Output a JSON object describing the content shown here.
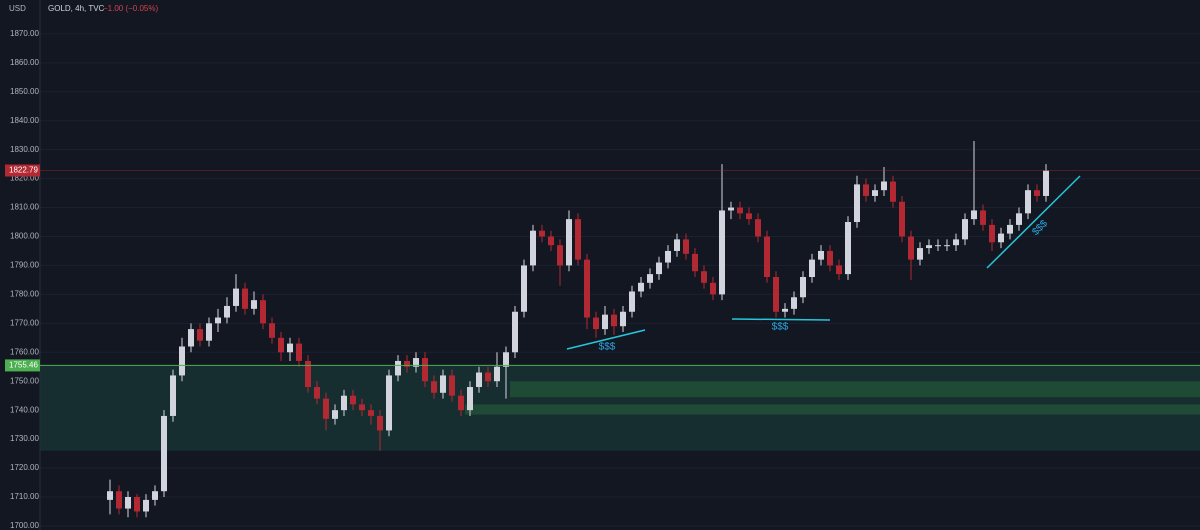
{
  "chart_data": {
    "type": "candlestick",
    "currency": "USD",
    "title": "GOLD, 4h, TVC",
    "change": "−1.00 (−0.05%)",
    "annotations": [
      "$$$",
      "$$$",
      "$$$"
    ],
    "ylim": [
      1698.6,
      1881.7
    ],
    "yticks": [
      {
        "value": 1700,
        "label": "1700.00"
      },
      {
        "value": 1710,
        "label": "1710.00"
      },
      {
        "value": 1720,
        "label": "1720.00"
      },
      {
        "value": 1730,
        "label": "1730.00"
      },
      {
        "value": 1740,
        "label": "1740.00"
      },
      {
        "value": 1750,
        "label": "1750.00"
      },
      {
        "value": 1760,
        "label": "1760.00"
      },
      {
        "value": 1770,
        "label": "1770.00"
      },
      {
        "value": 1780,
        "label": "1780.00"
      },
      {
        "value": 1790,
        "label": "1790.00"
      },
      {
        "value": 1800,
        "label": "1800.00"
      },
      {
        "value": 1810,
        "label": "1810.00"
      },
      {
        "value": 1820,
        "label": "1820.00"
      },
      {
        "value": 1830,
        "label": "1830.00"
      },
      {
        "value": 1840,
        "label": "1840.00"
      },
      {
        "value": 1850,
        "label": "1850.00"
      },
      {
        "value": 1860,
        "label": "1860.00"
      },
      {
        "value": 1870,
        "label": "1870.00"
      }
    ],
    "grid": true,
    "up_color": "#d1d4dc",
    "down_color": "#b22833",
    "last_price": 1822.79,
    "last_price_color": "#b22833",
    "level": 1755.46,
    "level_color": "#4caf50",
    "candles": [
      [
        1709,
        1716,
        1704,
        1712
      ],
      [
        1712,
        1714,
        1704,
        1706
      ],
      [
        1706,
        1712,
        1703,
        1710
      ],
      [
        1710,
        1711,
        1703,
        1705
      ],
      [
        1705,
        1711,
        1703,
        1709
      ],
      [
        1709,
        1714,
        1707,
        1712
      ],
      [
        1712,
        1740,
        1710,
        1738
      ],
      [
        1738,
        1754,
        1736,
        1752
      ],
      [
        1752,
        1765,
        1750,
        1762
      ],
      [
        1762,
        1770,
        1760,
        1768
      ],
      [
        1768,
        1770,
        1762,
        1764
      ],
      [
        1764,
        1772,
        1762,
        1770
      ],
      [
        1770,
        1775,
        1767,
        1772
      ],
      [
        1772,
        1779,
        1770,
        1776
      ],
      [
        1776,
        1787,
        1774,
        1782
      ],
      [
        1782,
        1784,
        1773,
        1775
      ],
      [
        1775,
        1781,
        1773,
        1778
      ],
      [
        1778,
        1780,
        1768,
        1770
      ],
      [
        1770,
        1772,
        1763,
        1765
      ],
      [
        1765,
        1767,
        1757,
        1760
      ],
      [
        1760,
        1765,
        1757,
        1763
      ],
      [
        1763,
        1765,
        1755,
        1757
      ],
      [
        1757,
        1759,
        1746,
        1748
      ],
      [
        1748,
        1750,
        1742,
        1744
      ],
      [
        1744,
        1746,
        1733,
        1737
      ],
      [
        1737,
        1742,
        1735,
        1740
      ],
      [
        1740,
        1747,
        1738,
        1745
      ],
      [
        1745,
        1747,
        1740,
        1742
      ],
      [
        1742,
        1744,
        1738,
        1740
      ],
      [
        1740,
        1742,
        1735,
        1738
      ],
      [
        1738,
        1740,
        1726,
        1733
      ],
      [
        1733,
        1754,
        1731,
        1752
      ],
      [
        1752,
        1759,
        1750,
        1757
      ],
      [
        1757,
        1759,
        1753,
        1755
      ],
      [
        1755,
        1760,
        1753,
        1758
      ],
      [
        1758,
        1760,
        1748,
        1750
      ],
      [
        1750,
        1752,
        1744,
        1746
      ],
      [
        1746,
        1754,
        1744,
        1752
      ],
      [
        1752,
        1754,
        1743,
        1745
      ],
      [
        1745,
        1747,
        1738,
        1740
      ],
      [
        1740,
        1750,
        1738,
        1748
      ],
      [
        1748,
        1755,
        1746,
        1753
      ],
      [
        1753,
        1755,
        1748,
        1750
      ],
      [
        1750,
        1760,
        1748,
        1755
      ],
      [
        1755,
        1762,
        1744,
        1760
      ],
      [
        1760,
        1776,
        1758,
        1774
      ],
      [
        1774,
        1792,
        1772,
        1790
      ],
      [
        1790,
        1804,
        1788,
        1802
      ],
      [
        1802,
        1804,
        1798,
        1800
      ],
      [
        1800,
        1802,
        1795,
        1797
      ],
      [
        1797,
        1799,
        1783,
        1790
      ],
      [
        1790,
        1809,
        1788,
        1806
      ],
      [
        1806,
        1808,
        1790,
        1792
      ],
      [
        1792,
        1794,
        1768,
        1772
      ],
      [
        1772,
        1774,
        1765,
        1768
      ],
      [
        1768,
        1776,
        1766,
        1773
      ],
      [
        1773,
        1775,
        1766,
        1769
      ],
      [
        1769,
        1776,
        1767,
        1774
      ],
      [
        1774,
        1783,
        1772,
        1781
      ],
      [
        1781,
        1786,
        1779,
        1784
      ],
      [
        1784,
        1789,
        1782,
        1787
      ],
      [
        1787,
        1793,
        1785,
        1791
      ],
      [
        1791,
        1797,
        1789,
        1795
      ],
      [
        1795,
        1801,
        1793,
        1799
      ],
      [
        1799,
        1801,
        1792,
        1794
      ],
      [
        1794,
        1796,
        1786,
        1788
      ],
      [
        1788,
        1790,
        1782,
        1784
      ],
      [
        1784,
        1786,
        1778,
        1780
      ],
      [
        1780,
        1825,
        1778,
        1809
      ],
      [
        1809,
        1812,
        1806,
        1810
      ],
      [
        1810,
        1812,
        1806,
        1808
      ],
      [
        1808,
        1810,
        1804,
        1806
      ],
      [
        1806,
        1808,
        1798,
        1800
      ],
      [
        1800,
        1802,
        1784,
        1786
      ],
      [
        1786,
        1788,
        1772,
        1774
      ],
      [
        1774,
        1777,
        1772,
        1775
      ],
      [
        1775,
        1781,
        1773,
        1779
      ],
      [
        1779,
        1788,
        1777,
        1786
      ],
      [
        1786,
        1794,
        1784,
        1792
      ],
      [
        1792,
        1797,
        1790,
        1795
      ],
      [
        1795,
        1797,
        1788,
        1790
      ],
      [
        1790,
        1792,
        1785,
        1787
      ],
      [
        1787,
        1807,
        1785,
        1805
      ],
      [
        1805,
        1821,
        1803,
        1818
      ],
      [
        1818,
        1820,
        1812,
        1814
      ],
      [
        1814,
        1818,
        1812,
        1816
      ],
      [
        1816,
        1824,
        1814,
        1819
      ],
      [
        1819,
        1821,
        1810,
        1812
      ],
      [
        1812,
        1814,
        1798,
        1800
      ],
      [
        1800,
        1802,
        1785,
        1792
      ],
      [
        1792,
        1798,
        1790,
        1796
      ],
      [
        1796,
        1799,
        1794,
        1797
      ],
      [
        1797,
        1799,
        1795,
        1797
      ],
      [
        1797,
        1799,
        1795,
        1797
      ],
      [
        1797,
        1801,
        1795,
        1799
      ],
      [
        1799,
        1808,
        1797,
        1806
      ],
      [
        1806,
        1833,
        1804,
        1809
      ],
      [
        1809,
        1811,
        1802,
        1804
      ],
      [
        1804,
        1806,
        1795,
        1798
      ],
      [
        1798,
        1803,
        1796,
        1801
      ],
      [
        1801,
        1806,
        1799,
        1804
      ],
      [
        1804,
        1810,
        1802,
        1808
      ],
      [
        1808,
        1818,
        1806,
        1816
      ],
      [
        1816,
        1818,
        1812,
        1814
      ],
      [
        1814,
        1825,
        1812,
        1822.79
      ]
    ]
  }
}
